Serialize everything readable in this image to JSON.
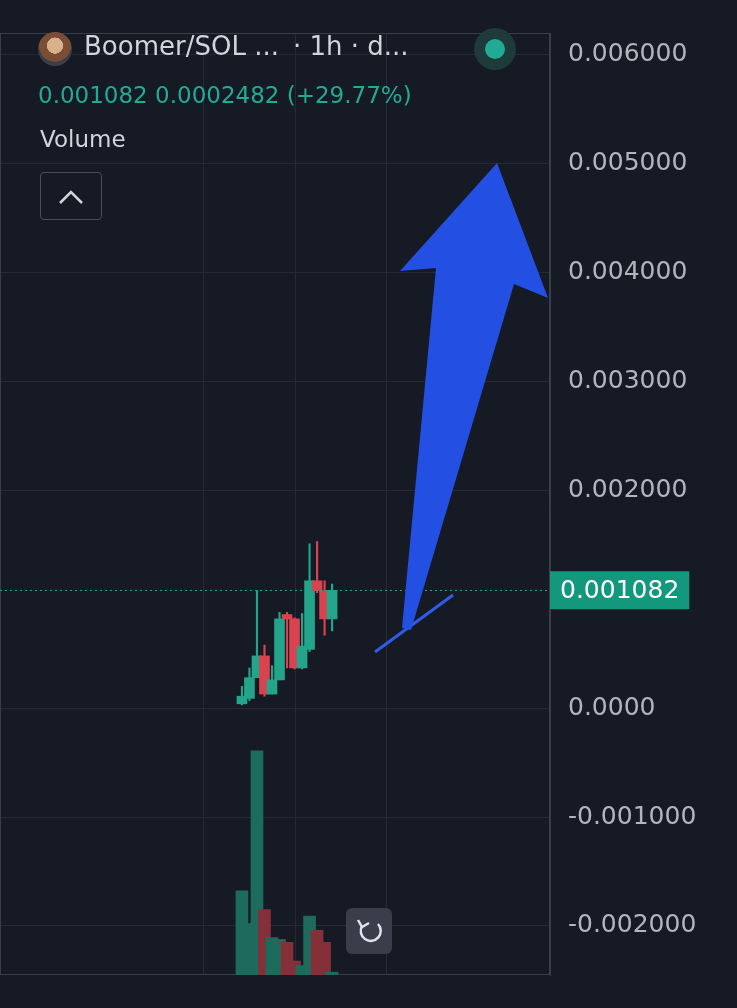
{
  "chart_data": {
    "type": "candlestick",
    "title": "Boomer/SOL ...",
    "subtitle": "· 1h · d...",
    "annotations": [
      {
        "text": "0.001082 0.0002482 (+29.77%)"
      },
      {
        "text": "Volume"
      },
      {
        "text": "0.001082",
        "y": 0.001082
      }
    ],
    "x": [
      1,
      2,
      3,
      4,
      5,
      6,
      7,
      8,
      9,
      10,
      11,
      12,
      13
    ],
    "open": [
      4e-05,
      9e-05,
      0.00028,
      0.00048,
      0.00013,
      0.00026,
      0.00086,
      0.00082,
      0.00037,
      0.00054,
      0.00117,
      0.00108,
      0.00082
    ],
    "high": [
      0.0002,
      0.00037,
      0.00108,
      0.00058,
      0.00039,
      0.00088,
      0.00088,
      0.00083,
      0.00087,
      0.00151,
      0.00153,
      0.00117,
      0.00114
    ],
    "low": [
      3e-05,
      7e-05,
      0.00028,
      0.00011,
      0.00013,
      0.00026,
      0.00037,
      0.00036,
      0.00036,
      0.00052,
      0.00106,
      0.00067,
      0.00071
    ],
    "close": [
      0.00011,
      0.00028,
      0.00048,
      0.00013,
      0.00026,
      0.00082,
      0.00082,
      0.00037,
      0.00057,
      0.00117,
      0.00108,
      0.00082,
      0.001082
    ],
    "volume": [
      90,
      55,
      240,
      70,
      40,
      38,
      35,
      15,
      10,
      63,
      48,
      35,
      3
    ],
    "xlim": [
      -12.9,
      23.7
    ],
    "xticks": [
      2,
      14.2
    ],
    "ylim": [
      -0.00245,
      0.0062
    ],
    "yticks": [
      {
        "value": 0.006,
        "label": "0.006000"
      },
      {
        "value": 0.005,
        "label": "0.005000"
      },
      {
        "value": 0.004,
        "label": "0.004000"
      },
      {
        "value": 0.003,
        "label": "0.003000"
      },
      {
        "value": 0.002,
        "label": "0.002000"
      },
      {
        "value": 0,
        "label": "0.0000"
      },
      {
        "value": -0.001,
        "label": "-0.001000"
      },
      {
        "value": -0.002,
        "label": "-0.002000"
      }
    ],
    "y2lim": [
      0,
      1008
    ],
    "y2ticks": [],
    "grid": true,
    "tick_labels": "y"
  }
}
